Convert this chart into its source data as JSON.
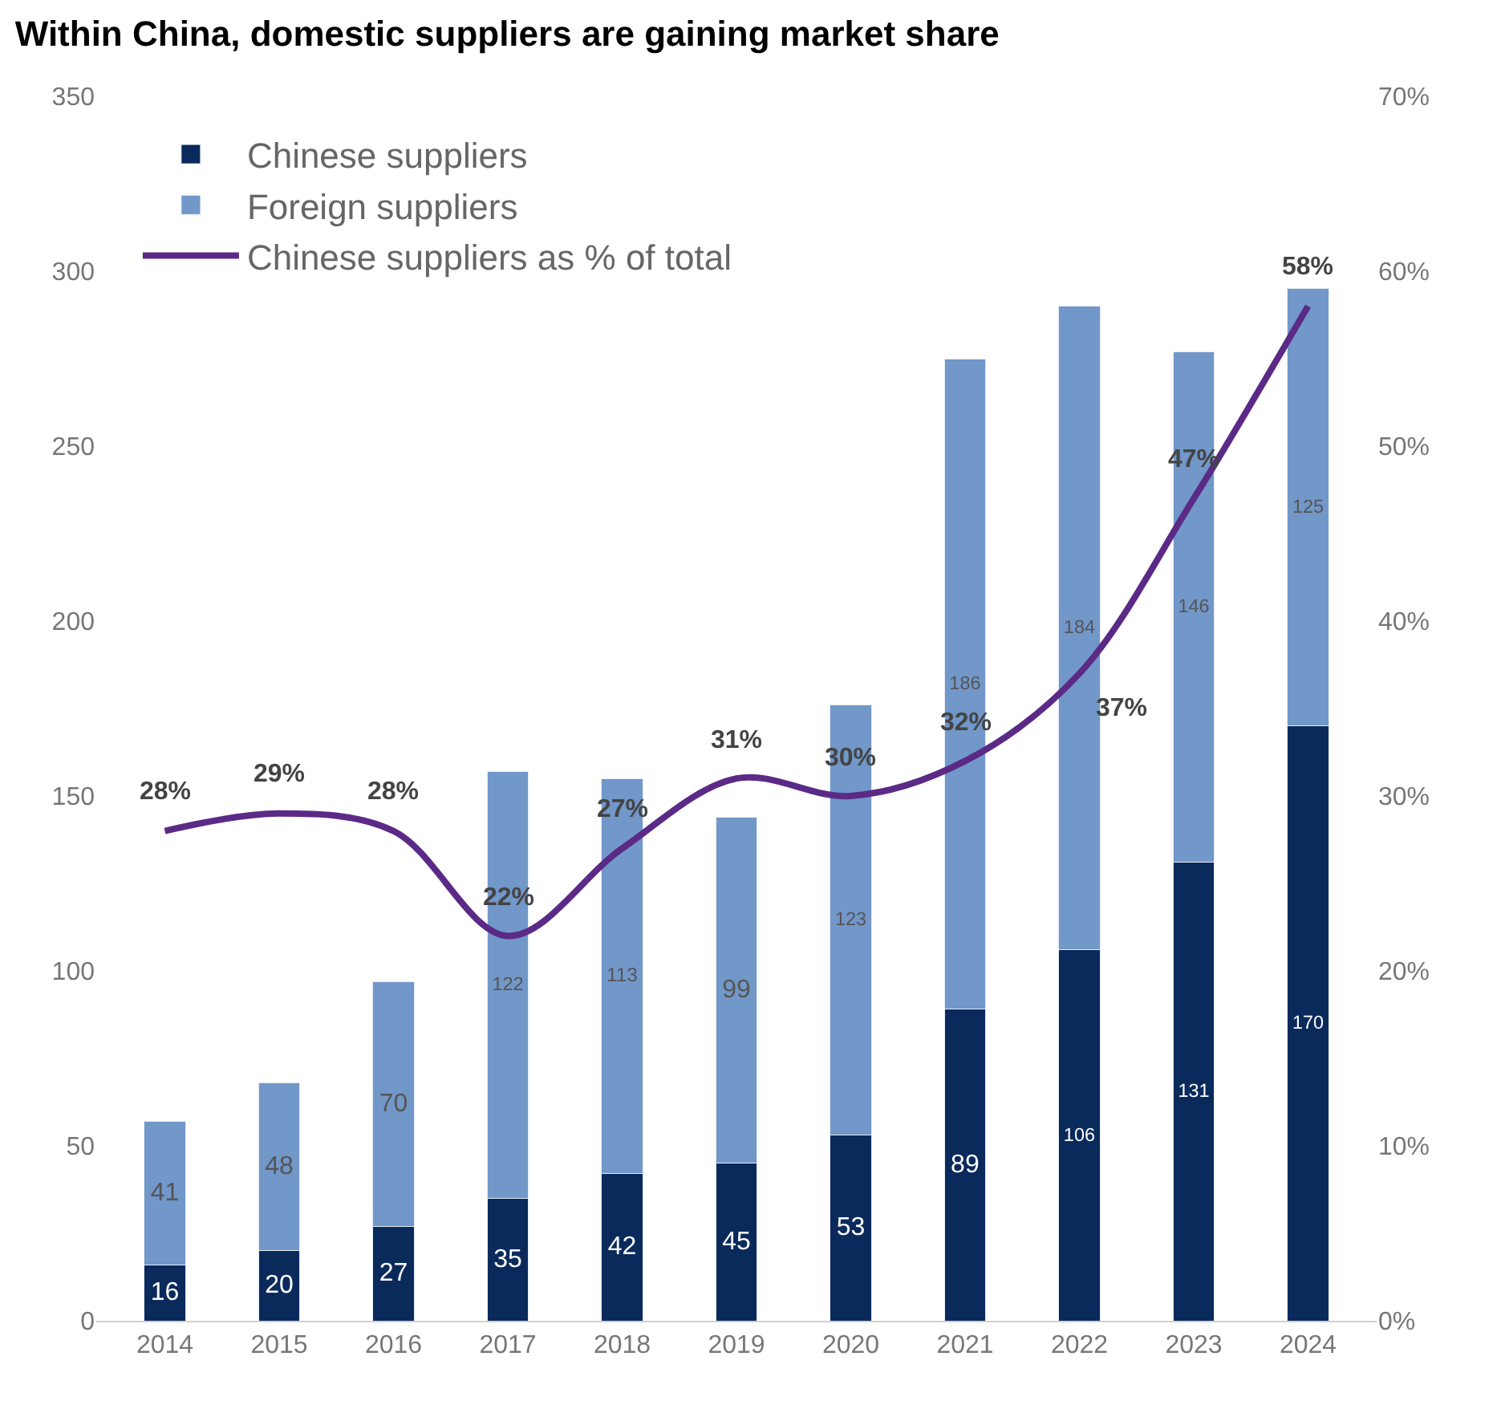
{
  "chart_data": {
    "type": "bar",
    "title": "Within China, domestic suppliers are gaining market share",
    "categories": [
      "2014",
      "2015",
      "2016",
      "2017",
      "2018",
      "2019",
      "2020",
      "2021",
      "2022",
      "2023",
      "2024"
    ],
    "stacked": true,
    "data_labels": true,
    "legend": "top left",
    "series": [
      {
        "name": "Chinese suppliers",
        "color": "#0b2a5c",
        "values": [
          16,
          20,
          27,
          35,
          42,
          45,
          53,
          89,
          106,
          131,
          170
        ]
      },
      {
        "name": "Foreign suppliers",
        "color": "#7297c9",
        "values": [
          41,
          48,
          70,
          122,
          113,
          99,
          123,
          186,
          184,
          146,
          125
        ]
      },
      {
        "name": "Chinese suppliers as % of total",
        "type": "line",
        "axis": "y2",
        "color": "#5b2a86",
        "values": [
          28,
          29,
          28,
          22,
          27,
          31,
          30,
          32,
          37,
          47,
          58
        ],
        "value_labels": [
          "28%",
          "29%",
          "28%",
          "22%",
          "27%",
          "31%",
          "30%",
          "32%",
          "37%",
          "47%",
          "58%"
        ]
      }
    ],
    "ylim": [
      0,
      350
    ],
    "yticks": [
      0,
      50,
      100,
      150,
      200,
      250,
      300,
      350
    ],
    "y2lim": [
      0,
      70
    ],
    "y2ticks": [
      {
        "value": 0,
        "label": "0%"
      },
      {
        "value": 10,
        "label": "10%"
      },
      {
        "value": 20,
        "label": "20%"
      },
      {
        "value": 30,
        "label": "30%"
      },
      {
        "value": 40,
        "label": "40%"
      },
      {
        "value": 50,
        "label": "50%"
      },
      {
        "value": 60,
        "label": "60%"
      },
      {
        "value": 70,
        "label": "70%"
      }
    ]
  }
}
